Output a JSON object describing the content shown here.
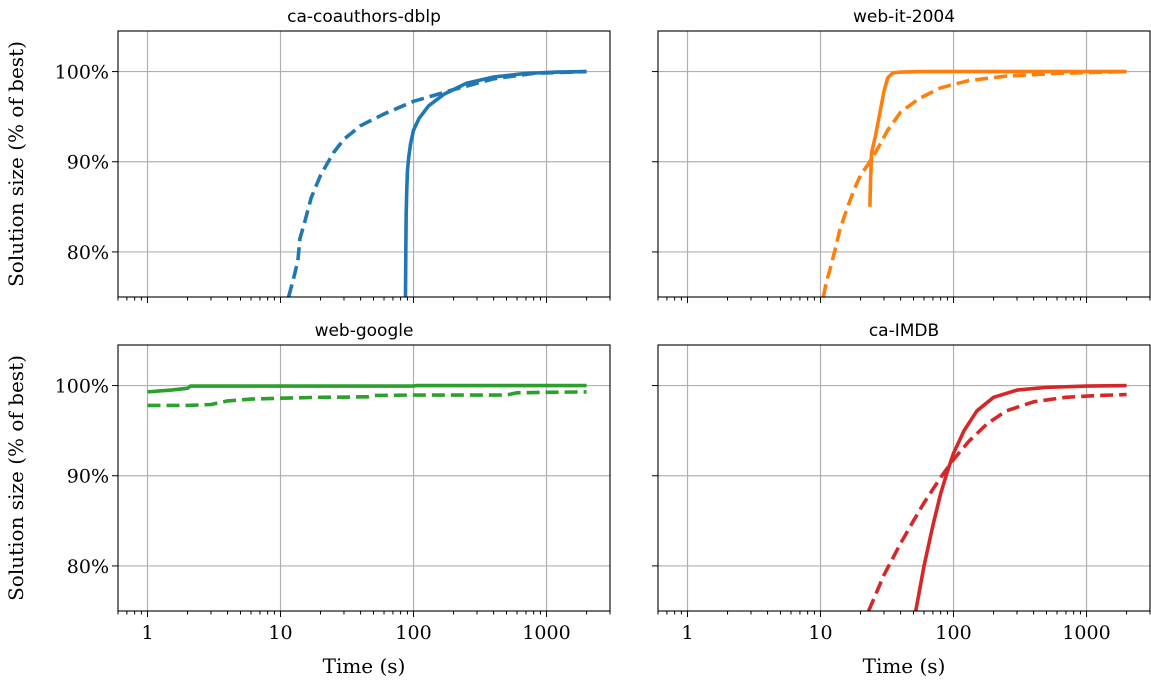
{
  "chart_data": [
    {
      "type": "line",
      "title": "ca-coauthors-dblp",
      "ylabel": "Solution size (% of best)",
      "xlabel": "",
      "xscale": "log",
      "xlim": [
        0.6,
        3000
      ],
      "ylim": [
        75,
        104.5
      ],
      "xticks": [
        1,
        10,
        100,
        1000
      ],
      "xtick_labels": [
        "",
        "",
        "",
        ""
      ],
      "yticks": [
        80,
        90,
        100
      ],
      "ytick_labels": [
        "80%",
        "90%",
        "100%"
      ],
      "grid": true,
      "color": "#1f77b4",
      "series": [
        {
          "style": "solid",
          "x": [
            87,
            87.5,
            88,
            89,
            90,
            92,
            95,
            100,
            110,
            130,
            170,
            250,
            400,
            700,
            1200,
            2000
          ],
          "y": [
            75,
            80,
            84,
            87,
            89,
            90.5,
            92,
            93.5,
            94.8,
            96.2,
            97.5,
            98.7,
            99.4,
            99.8,
            99.95,
            100
          ]
        },
        {
          "style": "dashed",
          "x": [
            11.5,
            12.5,
            13.5,
            14,
            15,
            17,
            20,
            25,
            30,
            40,
            60,
            100,
            200,
            400,
            800,
            2000
          ],
          "y": [
            75,
            77,
            79,
            81.5,
            83,
            86,
            88.5,
            91,
            92.5,
            94,
            95.3,
            96.7,
            98,
            99.2,
            99.8,
            100
          ]
        }
      ]
    },
    {
      "type": "line",
      "title": "web-it-2004",
      "ylabel": "",
      "xlabel": "",
      "xscale": "log",
      "xlim": [
        0.6,
        3000
      ],
      "ylim": [
        75,
        104.5
      ],
      "xticks": [
        1,
        10,
        100,
        1000
      ],
      "xtick_labels": [
        "",
        "",
        "",
        ""
      ],
      "yticks": [
        80,
        90,
        100
      ],
      "ytick_labels": [
        "",
        "",
        ""
      ],
      "grid": true,
      "color": "#ff7f0e",
      "series": [
        {
          "style": "solid",
          "x": [
            23.5,
            23.8,
            24.2,
            26,
            28,
            30,
            32,
            35,
            40,
            60,
            100,
            300,
            1000,
            2000
          ],
          "y": [
            85,
            88,
            91,
            93,
            95.5,
            97.8,
            99.3,
            99.85,
            99.95,
            100,
            100,
            100,
            100,
            100
          ]
        },
        {
          "style": "dashed",
          "x": [
            10.5,
            11,
            12,
            13,
            14,
            16,
            18,
            20,
            23,
            27,
            32,
            40,
            55,
            80,
            130,
            250,
            600,
            2000
          ],
          "y": [
            75,
            76.5,
            78.5,
            80.5,
            82.5,
            85,
            87,
            88.5,
            89.8,
            91.5,
            93.5,
            95.5,
            97,
            98.2,
            99,
            99.5,
            99.8,
            100
          ]
        }
      ]
    },
    {
      "type": "line",
      "title": "web-google",
      "ylabel": "Solution size (% of best)",
      "xlabel": "Time (s)",
      "xscale": "log",
      "xlim": [
        0.6,
        3000
      ],
      "ylim": [
        75,
        104.5
      ],
      "xticks": [
        1,
        10,
        100,
        1000
      ],
      "xtick_labels": [
        "1",
        "10",
        "100",
        "1000"
      ],
      "yticks": [
        80,
        90,
        100
      ],
      "ytick_labels": [
        "80%",
        "90%",
        "100%"
      ],
      "grid": true,
      "color": "#2ca02c",
      "series": [
        {
          "style": "solid",
          "x": [
            1,
            1.5,
            2,
            2.1,
            5,
            10,
            50,
            100,
            105,
            500,
            2000
          ],
          "y": [
            99.3,
            99.5,
            99.7,
            99.95,
            99.95,
            99.95,
            99.95,
            99.95,
            100,
            100,
            100
          ]
        },
        {
          "style": "dashed",
          "x": [
            1,
            2,
            3,
            4,
            6,
            10,
            20,
            45,
            50,
            100,
            500,
            600,
            1000,
            2000
          ],
          "y": [
            97.8,
            97.8,
            97.9,
            98.3,
            98.5,
            98.6,
            98.7,
            98.75,
            98.9,
            98.95,
            98.95,
            99.2,
            99.25,
            99.3
          ]
        }
      ]
    },
    {
      "type": "line",
      "title": "ca-IMDB",
      "ylabel": "",
      "xlabel": "Time (s)",
      "xscale": "log",
      "xlim": [
        0.6,
        3000
      ],
      "ylim": [
        75,
        104.5
      ],
      "xticks": [
        1,
        10,
        100,
        1000
      ],
      "xtick_labels": [
        "1",
        "10",
        "100",
        "1000"
      ],
      "yticks": [
        80,
        90,
        100
      ],
      "ytick_labels": [
        "",
        "",
        ""
      ],
      "grid": true,
      "color": "#d62728",
      "series": [
        {
          "style": "solid",
          "x": [
            52,
            60,
            70,
            80,
            90,
            100,
            120,
            150,
            200,
            300,
            500,
            1000,
            2000
          ],
          "y": [
            75,
            80,
            84.5,
            88,
            90.5,
            92.5,
            95,
            97.2,
            98.7,
            99.5,
            99.8,
            99.95,
            100
          ]
        },
        {
          "style": "dashed",
          "x": [
            23,
            30,
            40,
            50,
            60,
            70,
            80,
            100,
            130,
            180,
            250,
            400,
            700,
            1200,
            2000
          ],
          "y": [
            75,
            79,
            82.5,
            85,
            87,
            88.5,
            89.8,
            91.8,
            93.8,
            95.8,
            97.2,
            98.2,
            98.7,
            98.9,
            99
          ]
        }
      ]
    }
  ]
}
